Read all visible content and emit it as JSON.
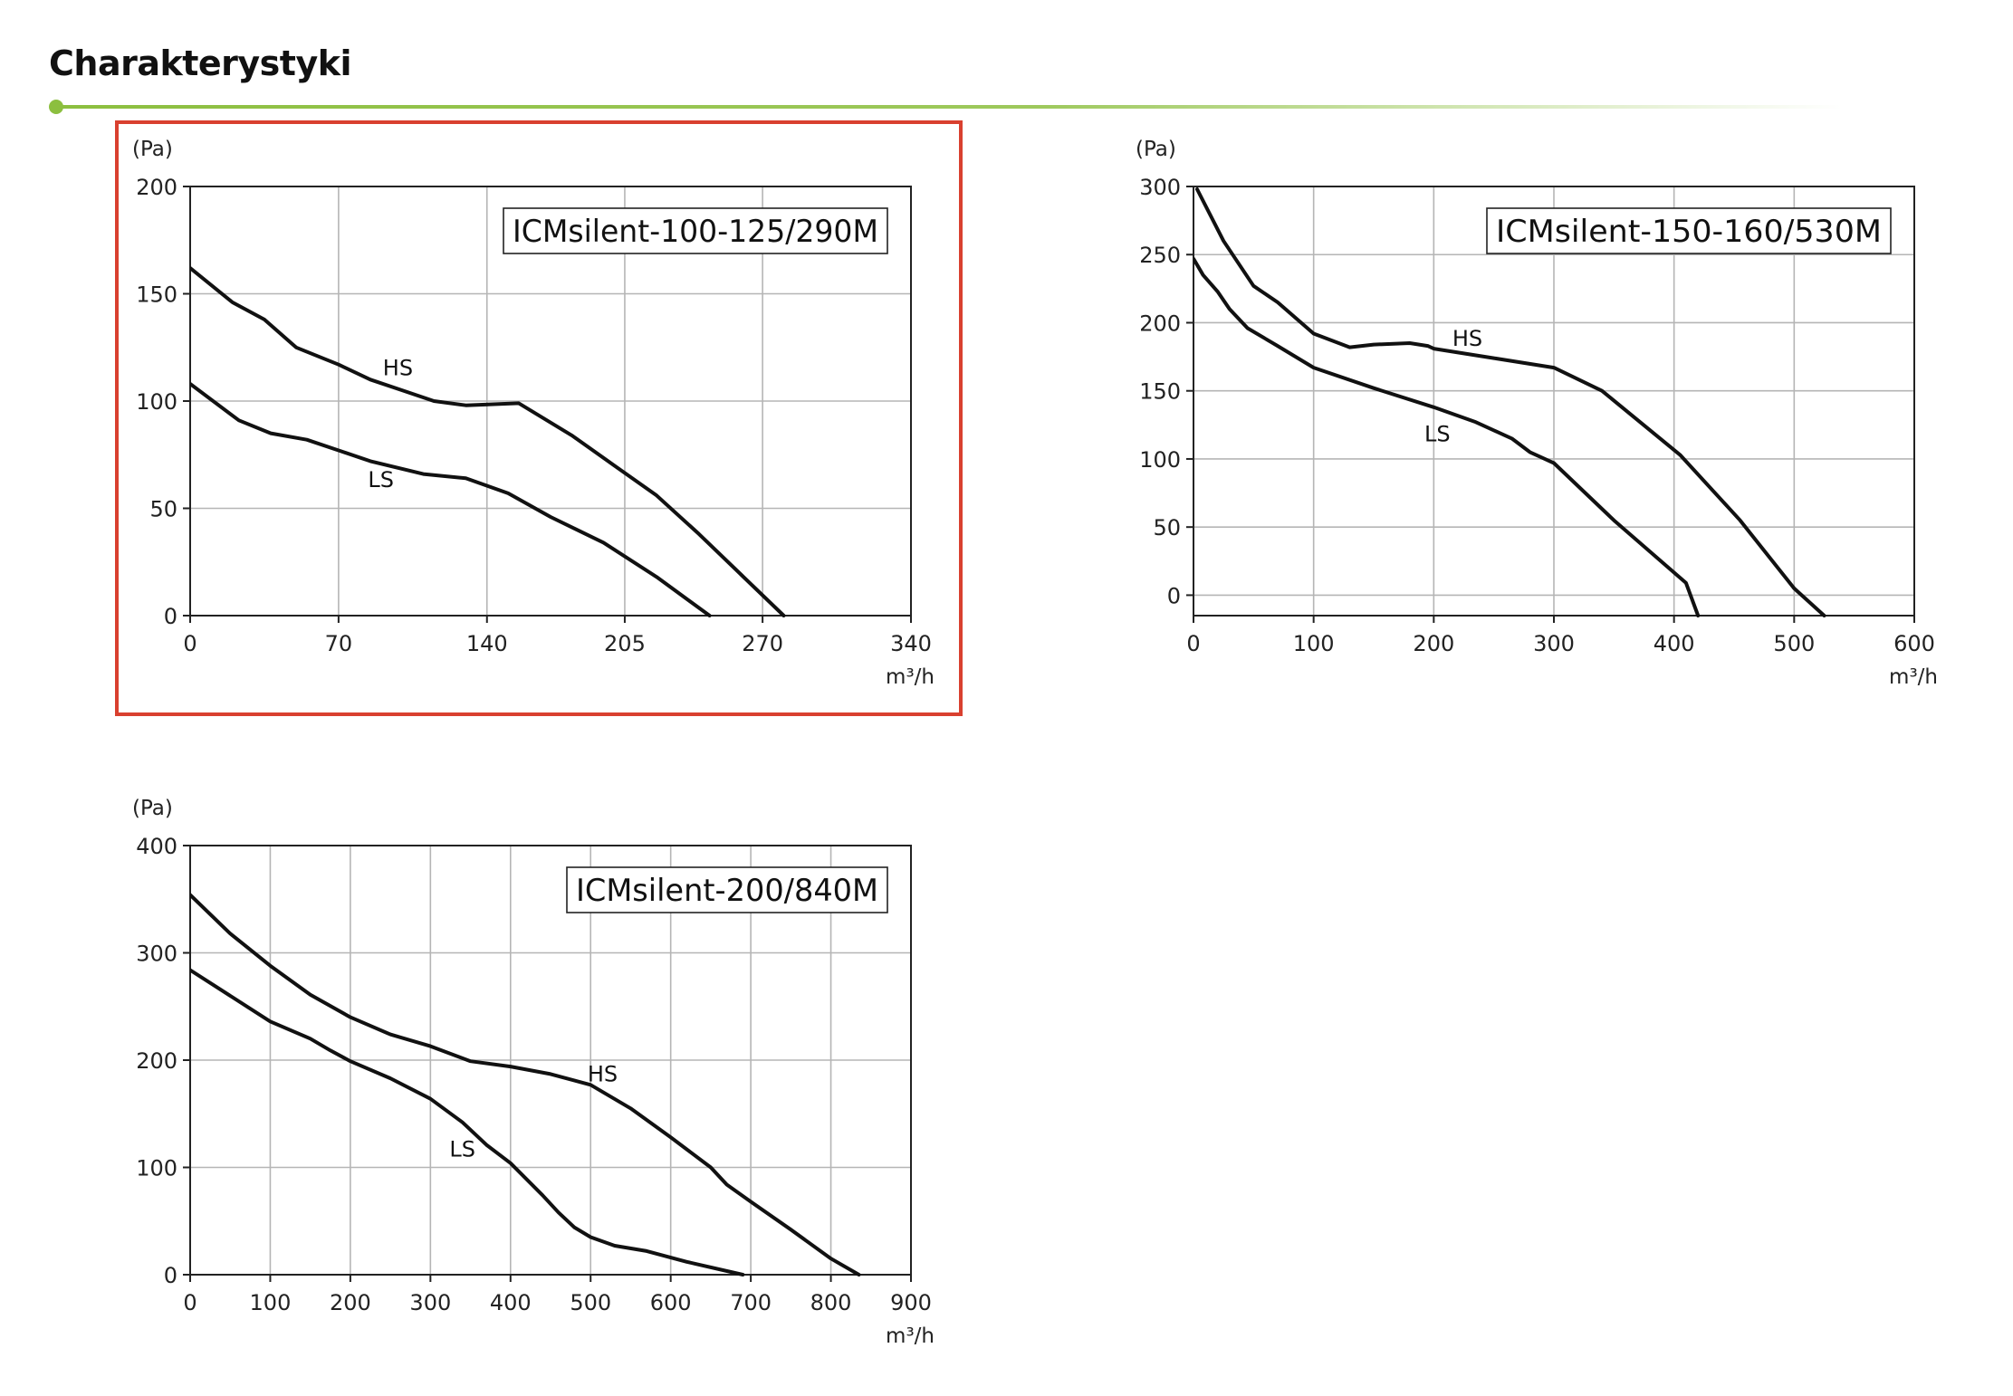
{
  "page": {
    "title": "Charakterystyki",
    "accent_color": "#8cbf3f",
    "highlight_color": "#d9402f"
  },
  "chart_data": [
    {
      "type": "line",
      "title": "ICMsilent-100-125/290M",
      "ylabel": "(Pa)",
      "xlabel": "m³/h",
      "xlim": [
        0,
        340
      ],
      "ylim": [
        0,
        200
      ],
      "x_ticks": [
        0,
        70,
        140,
        205,
        270,
        340
      ],
      "y_ticks": [
        0,
        50,
        100,
        150,
        200
      ],
      "highlighted": true,
      "series": [
        {
          "name": "HS",
          "label_at": [
            98,
            112
          ],
          "points": [
            [
              0,
              162
            ],
            [
              20,
              146
            ],
            [
              35,
              138
            ],
            [
              50,
              125
            ],
            [
              70,
              117
            ],
            [
              85,
              110
            ],
            [
              100,
              105
            ],
            [
              115,
              100
            ],
            [
              130,
              98
            ],
            [
              155,
              99
            ],
            [
              180,
              84
            ],
            [
              200,
              70
            ],
            [
              220,
              56
            ],
            [
              240,
              38
            ],
            [
              260,
              19
            ],
            [
              280,
              0
            ]
          ]
        },
        {
          "name": "LS",
          "label_at": [
            90,
            60
          ],
          "points": [
            [
              0,
              108
            ],
            [
              23,
              91
            ],
            [
              38,
              85
            ],
            [
              55,
              82
            ],
            [
              70,
              77
            ],
            [
              85,
              72
            ],
            [
              110,
              66
            ],
            [
              130,
              64
            ],
            [
              150,
              57
            ],
            [
              170,
              46
            ],
            [
              195,
              34
            ],
            [
              220,
              18
            ],
            [
              245,
              0
            ]
          ]
        }
      ]
    },
    {
      "type": "line",
      "title": "ICMsilent-150-160/530M",
      "ylabel": "(Pa)",
      "xlabel": "m³/h",
      "xlim": [
        0,
        600
      ],
      "ylim": [
        -15,
        300
      ],
      "x_ticks": [
        0,
        100,
        200,
        300,
        400,
        500,
        600
      ],
      "y_ticks": [
        0,
        50,
        100,
        150,
        200,
        250,
        300
      ],
      "highlighted": false,
      "series": [
        {
          "name": "HS",
          "label_at": [
            228,
            183
          ],
          "points": [
            [
              3,
              298
            ],
            [
              25,
              260
            ],
            [
              50,
              227
            ],
            [
              70,
              215
            ],
            [
              100,
              192
            ],
            [
              130,
              182
            ],
            [
              150,
              184
            ],
            [
              180,
              185
            ],
            [
              195,
              183
            ],
            [
              200,
              181
            ],
            [
              250,
              174
            ],
            [
              300,
              167
            ],
            [
              340,
              150
            ],
            [
              405,
              103
            ],
            [
              455,
              55
            ],
            [
              500,
              5
            ],
            [
              525,
              -15
            ]
          ]
        },
        {
          "name": "LS",
          "label_at": [
            203,
            113
          ],
          "points": [
            [
              0,
              247
            ],
            [
              8,
              235
            ],
            [
              20,
              223
            ],
            [
              30,
              210
            ],
            [
              45,
              196
            ],
            [
              70,
              183
            ],
            [
              100,
              167
            ],
            [
              150,
              152
            ],
            [
              200,
              138
            ],
            [
              235,
              127
            ],
            [
              265,
              115
            ],
            [
              280,
              105
            ],
            [
              300,
              97
            ],
            [
              350,
              55
            ],
            [
              410,
              9
            ],
            [
              420,
              -15
            ]
          ]
        }
      ]
    },
    {
      "type": "line",
      "title": "ICMsilent-200/840M",
      "ylabel": "(Pa)",
      "xlabel": "m³/h",
      "xlim": [
        0,
        900
      ],
      "ylim": [
        0,
        400
      ],
      "x_ticks": [
        0,
        100,
        200,
        300,
        400,
        500,
        600,
        700,
        800,
        900
      ],
      "y_ticks": [
        0,
        100,
        200,
        300,
        400
      ],
      "highlighted": false,
      "series": [
        {
          "name": "HS",
          "label_at": [
            515,
            180
          ],
          "points": [
            [
              0,
              354
            ],
            [
              50,
              318
            ],
            [
              100,
              288
            ],
            [
              150,
              261
            ],
            [
              200,
              240
            ],
            [
              250,
              224
            ],
            [
              300,
              213
            ],
            [
              350,
              199
            ],
            [
              400,
              194
            ],
            [
              450,
              187
            ],
            [
              500,
              177
            ],
            [
              550,
              155
            ],
            [
              600,
              128
            ],
            [
              650,
              100
            ],
            [
              670,
              84
            ],
            [
              700,
              68
            ],
            [
              750,
              42
            ],
            [
              800,
              15
            ],
            [
              835,
              0
            ]
          ]
        },
        {
          "name": "LS",
          "label_at": [
            340,
            110
          ],
          "points": [
            [
              0,
              284
            ],
            [
              50,
              260
            ],
            [
              100,
              236
            ],
            [
              150,
              220
            ],
            [
              175,
              209
            ],
            [
              200,
              199
            ],
            [
              250,
              183
            ],
            [
              300,
              164
            ],
            [
              340,
              142
            ],
            [
              370,
              121
            ],
            [
              400,
              104
            ],
            [
              440,
              74
            ],
            [
              460,
              58
            ],
            [
              480,
              44
            ],
            [
              500,
              35
            ],
            [
              530,
              27
            ],
            [
              570,
              22
            ],
            [
              620,
              12
            ],
            [
              690,
              0
            ]
          ]
        }
      ]
    }
  ]
}
